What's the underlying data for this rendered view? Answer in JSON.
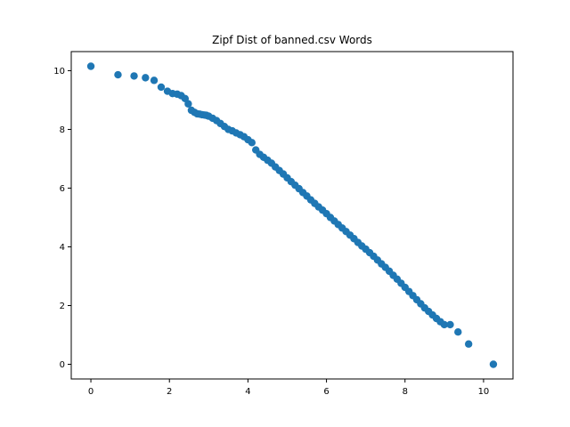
{
  "chart_data": {
    "type": "scatter",
    "title": "Zipf Dist of banned.csv Words",
    "xlabel": "",
    "ylabel": "",
    "xlim": [
      -0.5,
      10.75
    ],
    "ylim": [
      -0.5,
      10.65
    ],
    "xticks": [
      0,
      2,
      4,
      6,
      8,
      10
    ],
    "yticks": [
      0,
      2,
      4,
      6,
      8,
      10
    ],
    "grid": false,
    "point_color": "#1f77b4",
    "series": [
      {
        "x": [
          0,
          0.69,
          1.1,
          1.39,
          1.61,
          1.79,
          1.95,
          2.08,
          2.2,
          2.3,
          2.4,
          2.48,
          2.56,
          2.64,
          2.71,
          2.77,
          2.83,
          2.89,
          2.94,
          3.0,
          3.1,
          3.2,
          3.3,
          3.4,
          3.5,
          3.6,
          3.7,
          3.8,
          3.9,
          4.0,
          4.1,
          4.2,
          4.3,
          4.4,
          4.5,
          4.6,
          4.7,
          4.8,
          4.9,
          5.0,
          5.1,
          5.2,
          5.3,
          5.4,
          5.5,
          5.6,
          5.7,
          5.8,
          5.9,
          6.0,
          6.1,
          6.2,
          6.3,
          6.4,
          6.5,
          6.6,
          6.7,
          6.8,
          6.9,
          7.0,
          7.1,
          7.2,
          7.3,
          7.4,
          7.5,
          7.6,
          7.7,
          7.8,
          7.9,
          8.0,
          8.1,
          8.2,
          8.3,
          8.4,
          8.5,
          8.6,
          8.7,
          8.8,
          8.9,
          9.0,
          9.15,
          9.35,
          9.62,
          10.25
        ],
        "y": [
          10.15,
          9.86,
          9.82,
          9.76,
          9.67,
          9.44,
          9.3,
          9.22,
          9.2,
          9.15,
          9.05,
          8.87,
          8.65,
          8.58,
          8.53,
          8.52,
          8.5,
          8.49,
          8.48,
          8.45,
          8.38,
          8.3,
          8.2,
          8.1,
          8.0,
          7.95,
          7.88,
          7.82,
          7.75,
          7.65,
          7.55,
          7.3,
          7.15,
          7.05,
          6.95,
          6.85,
          6.72,
          6.6,
          6.48,
          6.35,
          6.22,
          6.1,
          5.98,
          5.85,
          5.73,
          5.6,
          5.48,
          5.36,
          5.25,
          5.13,
          5.0,
          4.88,
          4.76,
          4.64,
          4.52,
          4.4,
          4.28,
          4.15,
          4.03,
          3.92,
          3.8,
          3.68,
          3.55,
          3.42,
          3.3,
          3.17,
          3.03,
          2.9,
          2.76,
          2.62,
          2.48,
          2.34,
          2.2,
          2.06,
          1.92,
          1.8,
          1.68,
          1.56,
          1.45,
          1.35,
          1.35,
          1.1,
          0.69,
          0.0
        ]
      }
    ]
  }
}
